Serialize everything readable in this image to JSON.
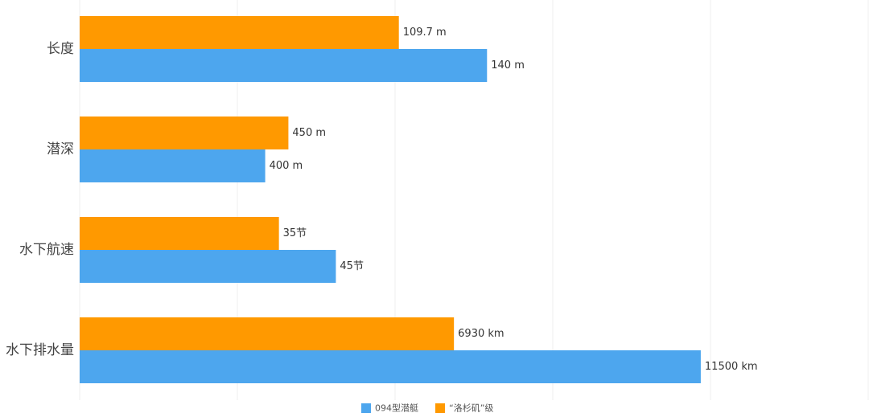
{
  "chart_data": {
    "type": "bar",
    "orientation": "horizontal",
    "categories": [
      "长度",
      "潜深",
      "水下航速",
      "水下排水量"
    ],
    "series": [
      {
        "name": "“洛杉矶”级",
        "color": "#ff9900",
        "values": [
          109.7,
          450,
          35,
          6930
        ],
        "labels": [
          "109.7 m",
          "450  m",
          "35节",
          "6930 km"
        ]
      },
      {
        "name": "094型潜艇",
        "color": "#4da6ee",
        "values": [
          140,
          400,
          45,
          11500
        ],
        "labels": [
          "140 m",
          "400  m",
          "45节",
          "11500 km"
        ]
      }
    ],
    "category_max": [
      271,
      1700,
      138.5,
      14600
    ],
    "grid": true,
    "gridline_color": "#efefef",
    "legend": {
      "position": "bottom-center",
      "entries": [
        {
          "name": "094型潜艇",
          "color": "#4da6ee"
        },
        {
          "name": "“洛杉矶”级",
          "color": "#ff9900"
        }
      ]
    }
  }
}
